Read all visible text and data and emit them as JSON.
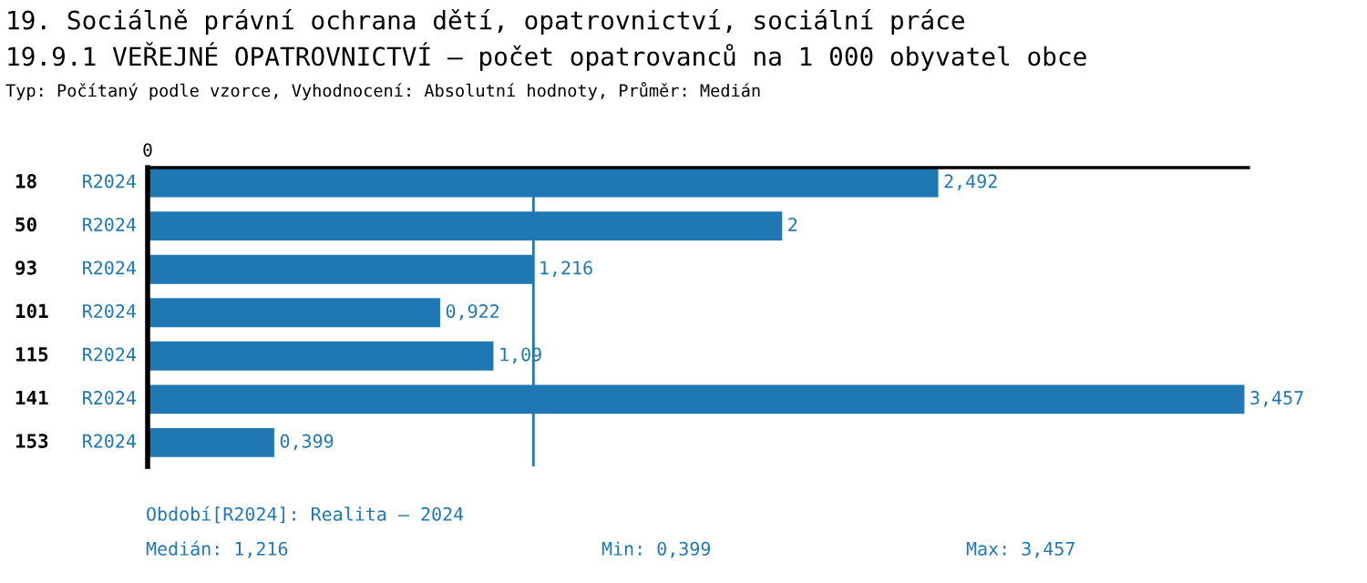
{
  "chart_data": {
    "type": "bar",
    "orientation": "horizontal",
    "title": "19. Sociálně právní ochrana dětí, opatrovnictví, sociální práce",
    "subtitle": "19.9.1 VEŘEJNÉ OPATROVNICTVÍ – počet opatrovanců na 1 000 obyvatel obce",
    "categories": [
      "18",
      "50",
      "93",
      "101",
      "115",
      "141",
      "153"
    ],
    "series": [
      {
        "name": "R2024",
        "color": "#1f77b4",
        "values": [
          2.492,
          2,
          1.216,
          0.922,
          1.09,
          3.457,
          0.399
        ],
        "value_labels": [
          "2,492",
          "2",
          "1,216",
          "0,922",
          "1,09",
          "3,457",
          "0,399"
        ]
      }
    ],
    "xlim": [
      0,
      3.47
    ],
    "ref_lines": [
      {
        "axis": "x",
        "value": 1.216,
        "color": "#1f77b4"
      }
    ],
    "annotations": [
      "0",
      "Typ: Počítaný podle vzorce, Vyhodnocení: Absolutní hodnoty, Průměr: Medián",
      "Období[R2024]: Realita – 2024",
      "Medián: 1,216",
      "Min: 0,399",
      "Max: 3,457"
    ]
  }
}
